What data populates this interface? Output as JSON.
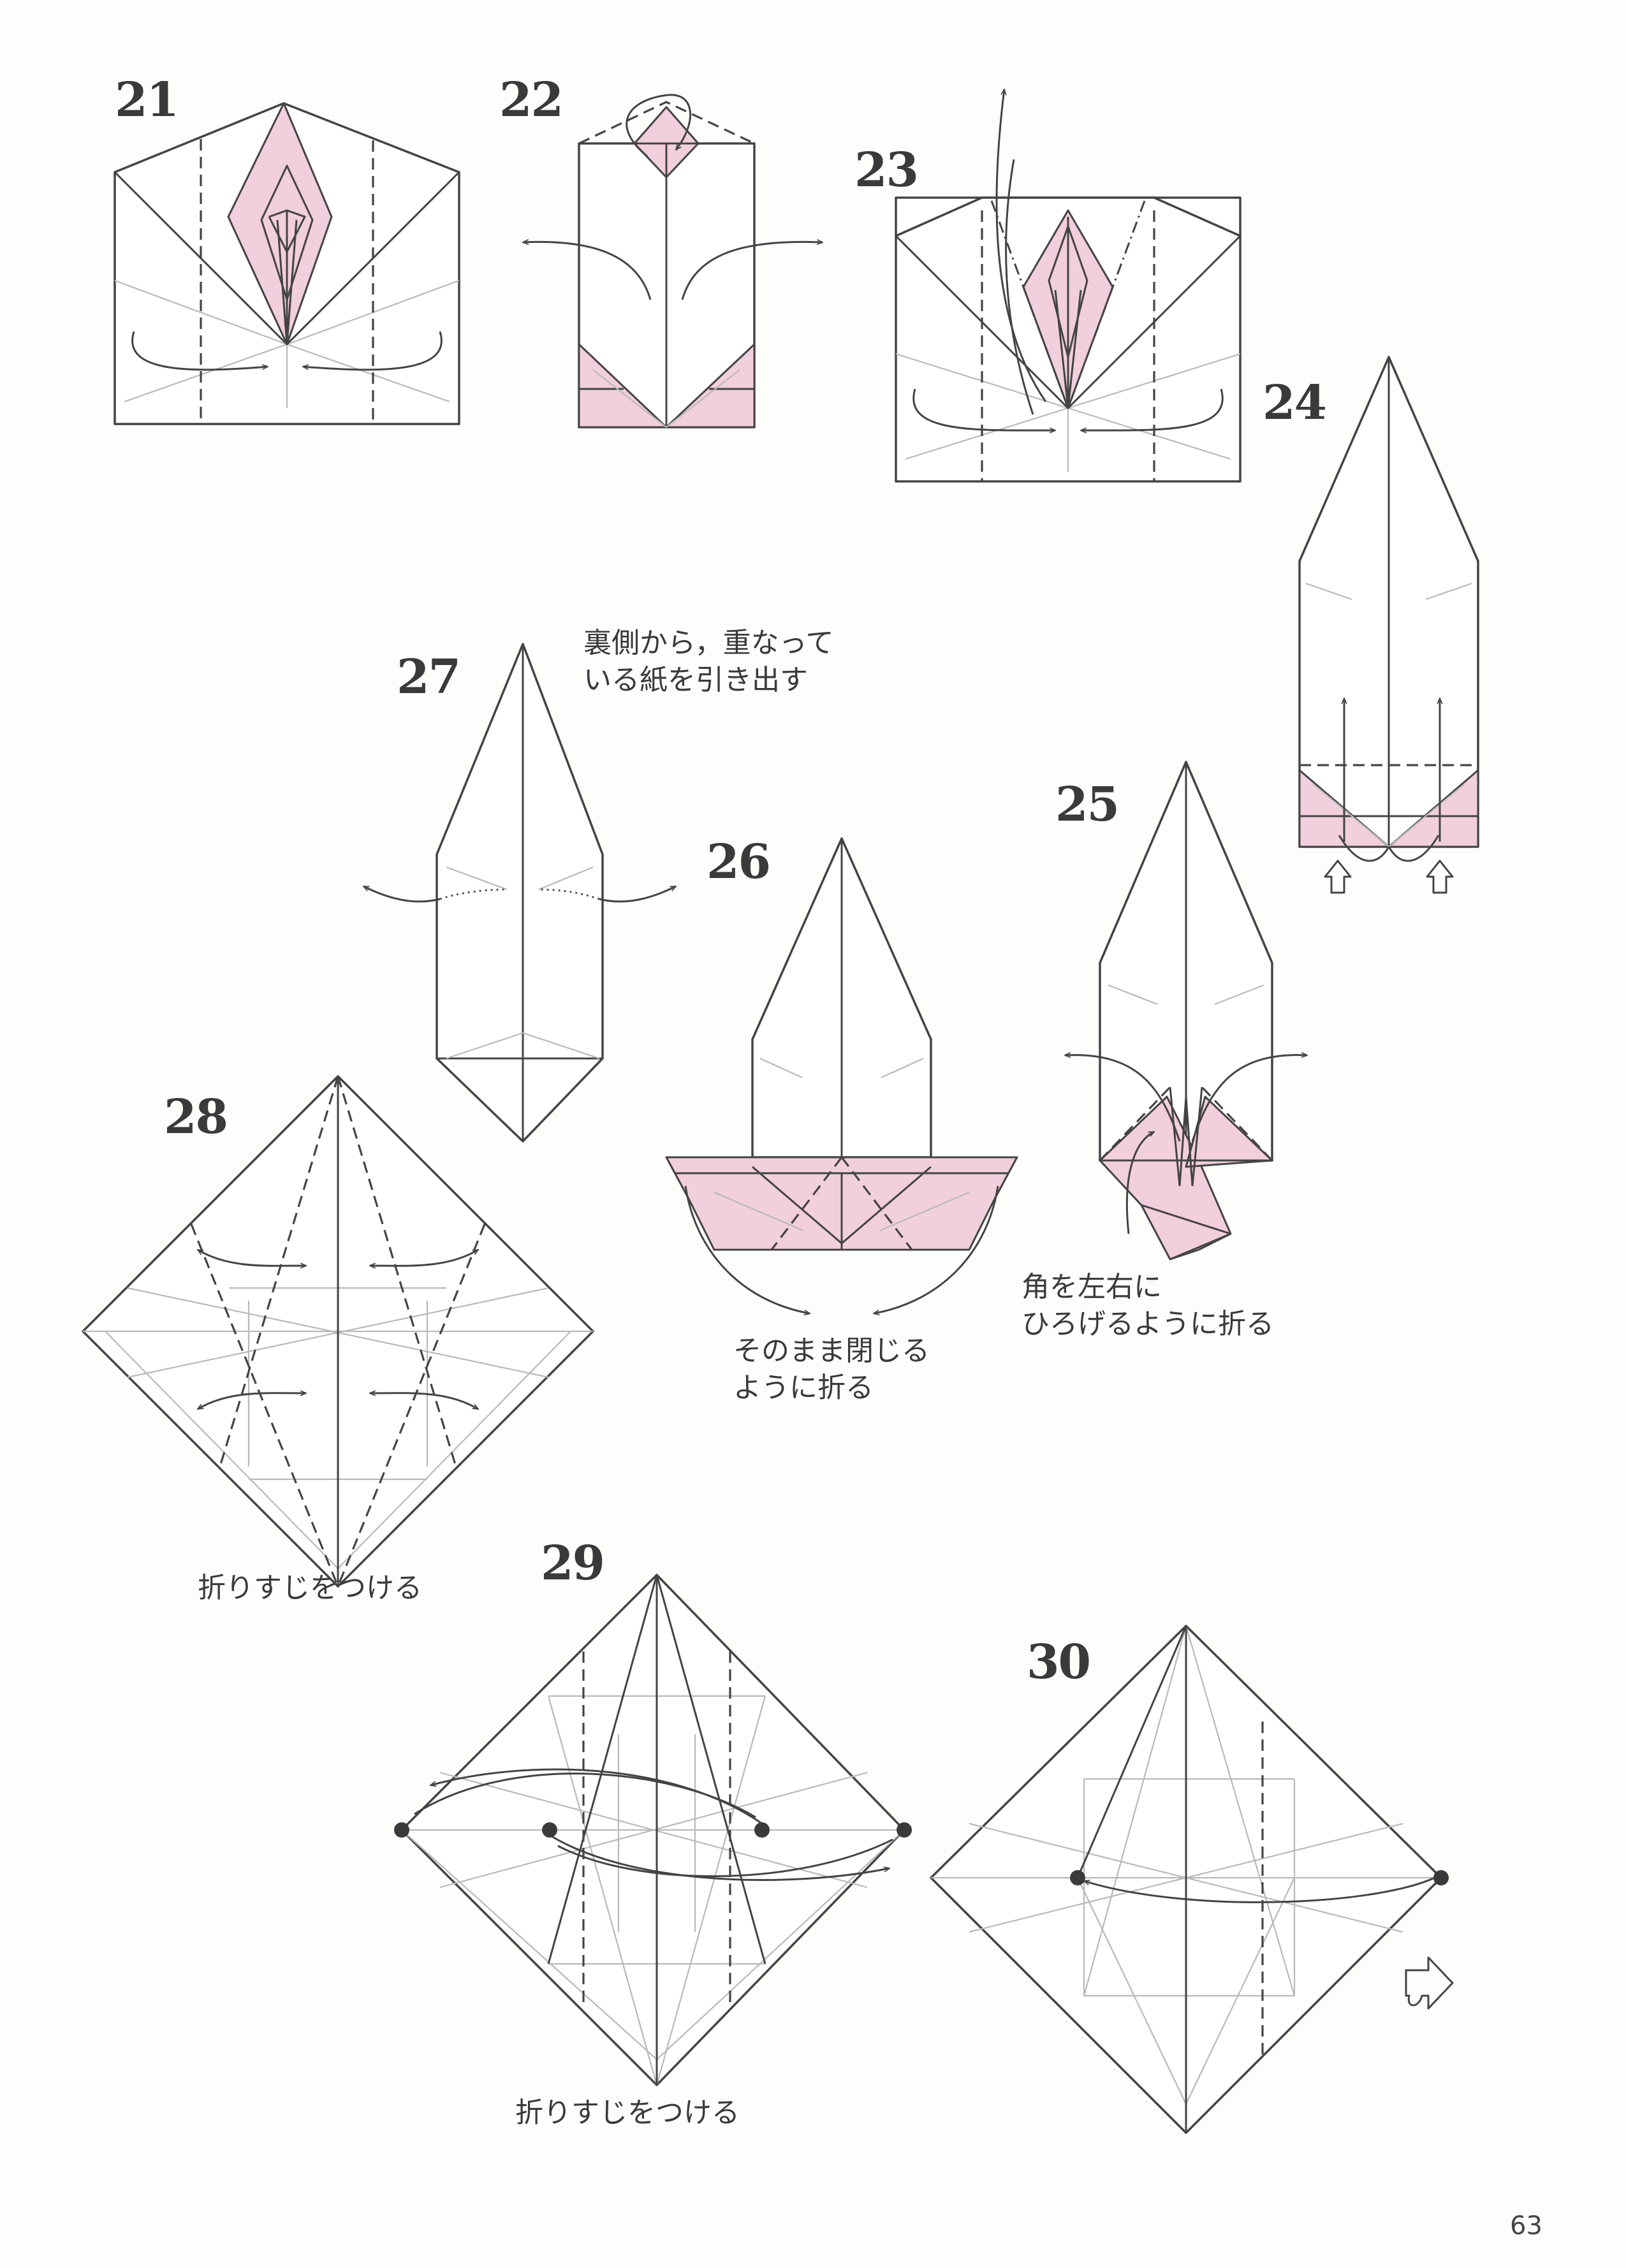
{
  "page": {
    "number": "63"
  },
  "colors": {
    "paper_pink": "#f2cfdd",
    "line": "#444444",
    "crease": "#b9b9b9",
    "text": "#3a3a3a"
  },
  "steps": [
    {
      "number": "21"
    },
    {
      "number": "22"
    },
    {
      "number": "23"
    },
    {
      "number": "24"
    },
    {
      "number": "25",
      "note": [
        "角を左右に",
        "ひろげるように折る"
      ]
    },
    {
      "number": "26",
      "note": [
        "そのまま閉じる",
        "ように折る"
      ]
    },
    {
      "number": "27",
      "note": [
        "裏側から，重なって",
        "いる紙を引き出す"
      ]
    },
    {
      "number": "28",
      "note": [
        "折りすじをつける"
      ]
    },
    {
      "number": "29",
      "note": [
        "折りすじをつける"
      ]
    },
    {
      "number": "30"
    }
  ],
  "icons": [
    "arrow-fold-over",
    "arrow-push-in",
    "turn-over-icon",
    "reference-dot"
  ]
}
